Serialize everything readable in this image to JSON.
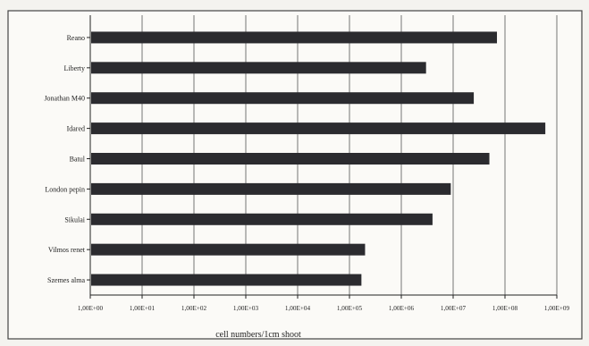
{
  "chart_data": {
    "type": "bar",
    "orientation": "horizontal",
    "scale": "log",
    "title": "",
    "xlabel": "cell numbers/1cm shoot",
    "ylabel": "",
    "categories": [
      "Reano",
      "Liberty",
      "Jonathan M40",
      "Idared",
      "Batul",
      "London pepin",
      "Sikulai",
      "Vilmos renet",
      "Szemes alma"
    ],
    "values": [
      70000000,
      3000000,
      25000000,
      600000000,
      50000000,
      9000000,
      4000000,
      200000,
      170000
    ],
    "xlim": [
      1,
      1000000000
    ],
    "xticks": [
      1,
      10,
      100,
      1000,
      10000,
      100000,
      1000000,
      10000000,
      100000000,
      1000000000
    ],
    "xtick_labels": [
      "1,00E+00",
      "1,00E+01",
      "1,00E+02",
      "1,00E+03",
      "1,00E+04",
      "1,00E+05",
      "1,00E+06",
      "1,00E+07",
      "1,00E+08",
      "1,00E+09"
    ],
    "grid": "vertical",
    "legend": "none",
    "colors": {
      "bar": "#2b2b2f",
      "background": "#fbfaf7",
      "grid": "#555555"
    }
  }
}
